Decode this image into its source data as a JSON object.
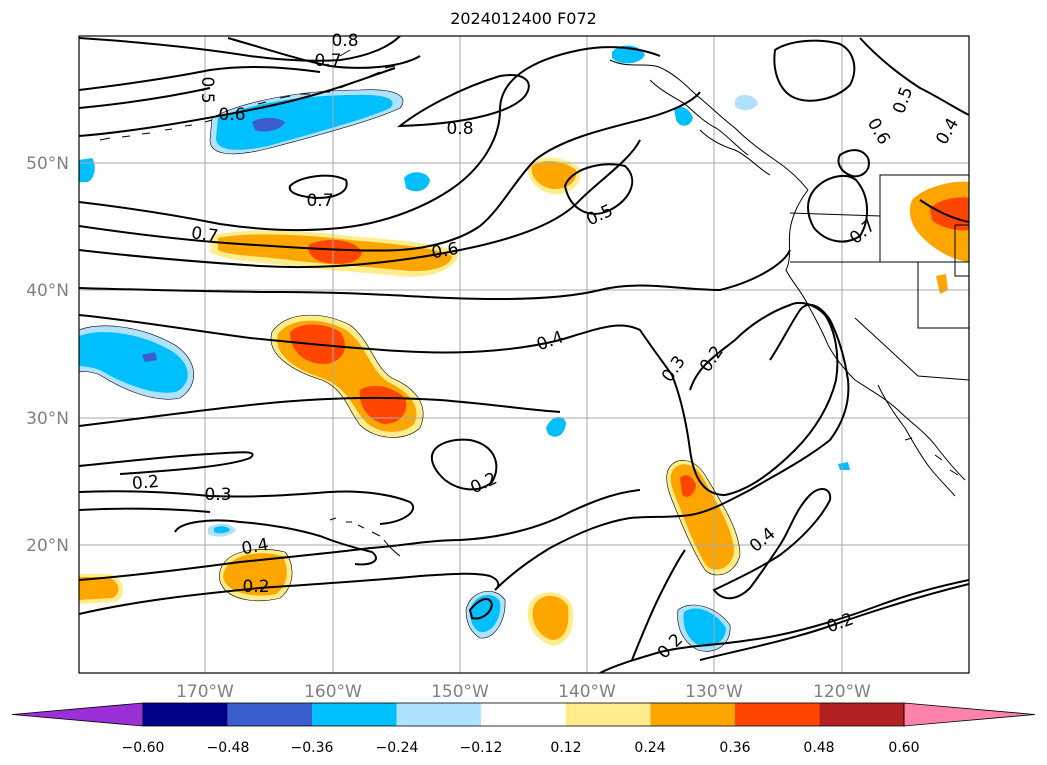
{
  "title": "2024012400 F072",
  "latitude_labels": [
    "50°N",
    "40°N",
    "30°N",
    "20°N"
  ],
  "longitude_labels": [
    "170°W",
    "160°W",
    "150°W",
    "140°W",
    "130°W",
    "120°W"
  ],
  "colorbar": {
    "ticks": [
      "−0.60",
      "−0.48",
      "−0.36",
      "−0.24",
      "−0.12",
      "0.12",
      "0.24",
      "0.36",
      "0.48",
      "0.60"
    ],
    "extend": "both",
    "colors": [
      "#9b30d9",
      "#00008b",
      "#3a5fcd",
      "#00bfff",
      "#b0e2ff",
      "#ffffff",
      "#ffec8b",
      "#ffa500",
      "#ff4500",
      "#b22222",
      "#ff82ab"
    ]
  },
  "contour_labels": [
    "0.8",
    "0.7",
    "0.5",
    "0.6",
    "0.8",
    "0.7",
    "0.5",
    "0.6",
    "0.4",
    "0.7",
    "0.7",
    "0.6",
    "0.5",
    "0.4",
    "0.3",
    "0.2",
    "0.2",
    "0.3",
    "0.2",
    "0.4",
    "0.2",
    "0.4",
    "0.2",
    "0.2"
  ],
  "colors": {
    "axes_label": "#808080",
    "grid": "#a9a9a9",
    "contour": "#000000"
  }
}
